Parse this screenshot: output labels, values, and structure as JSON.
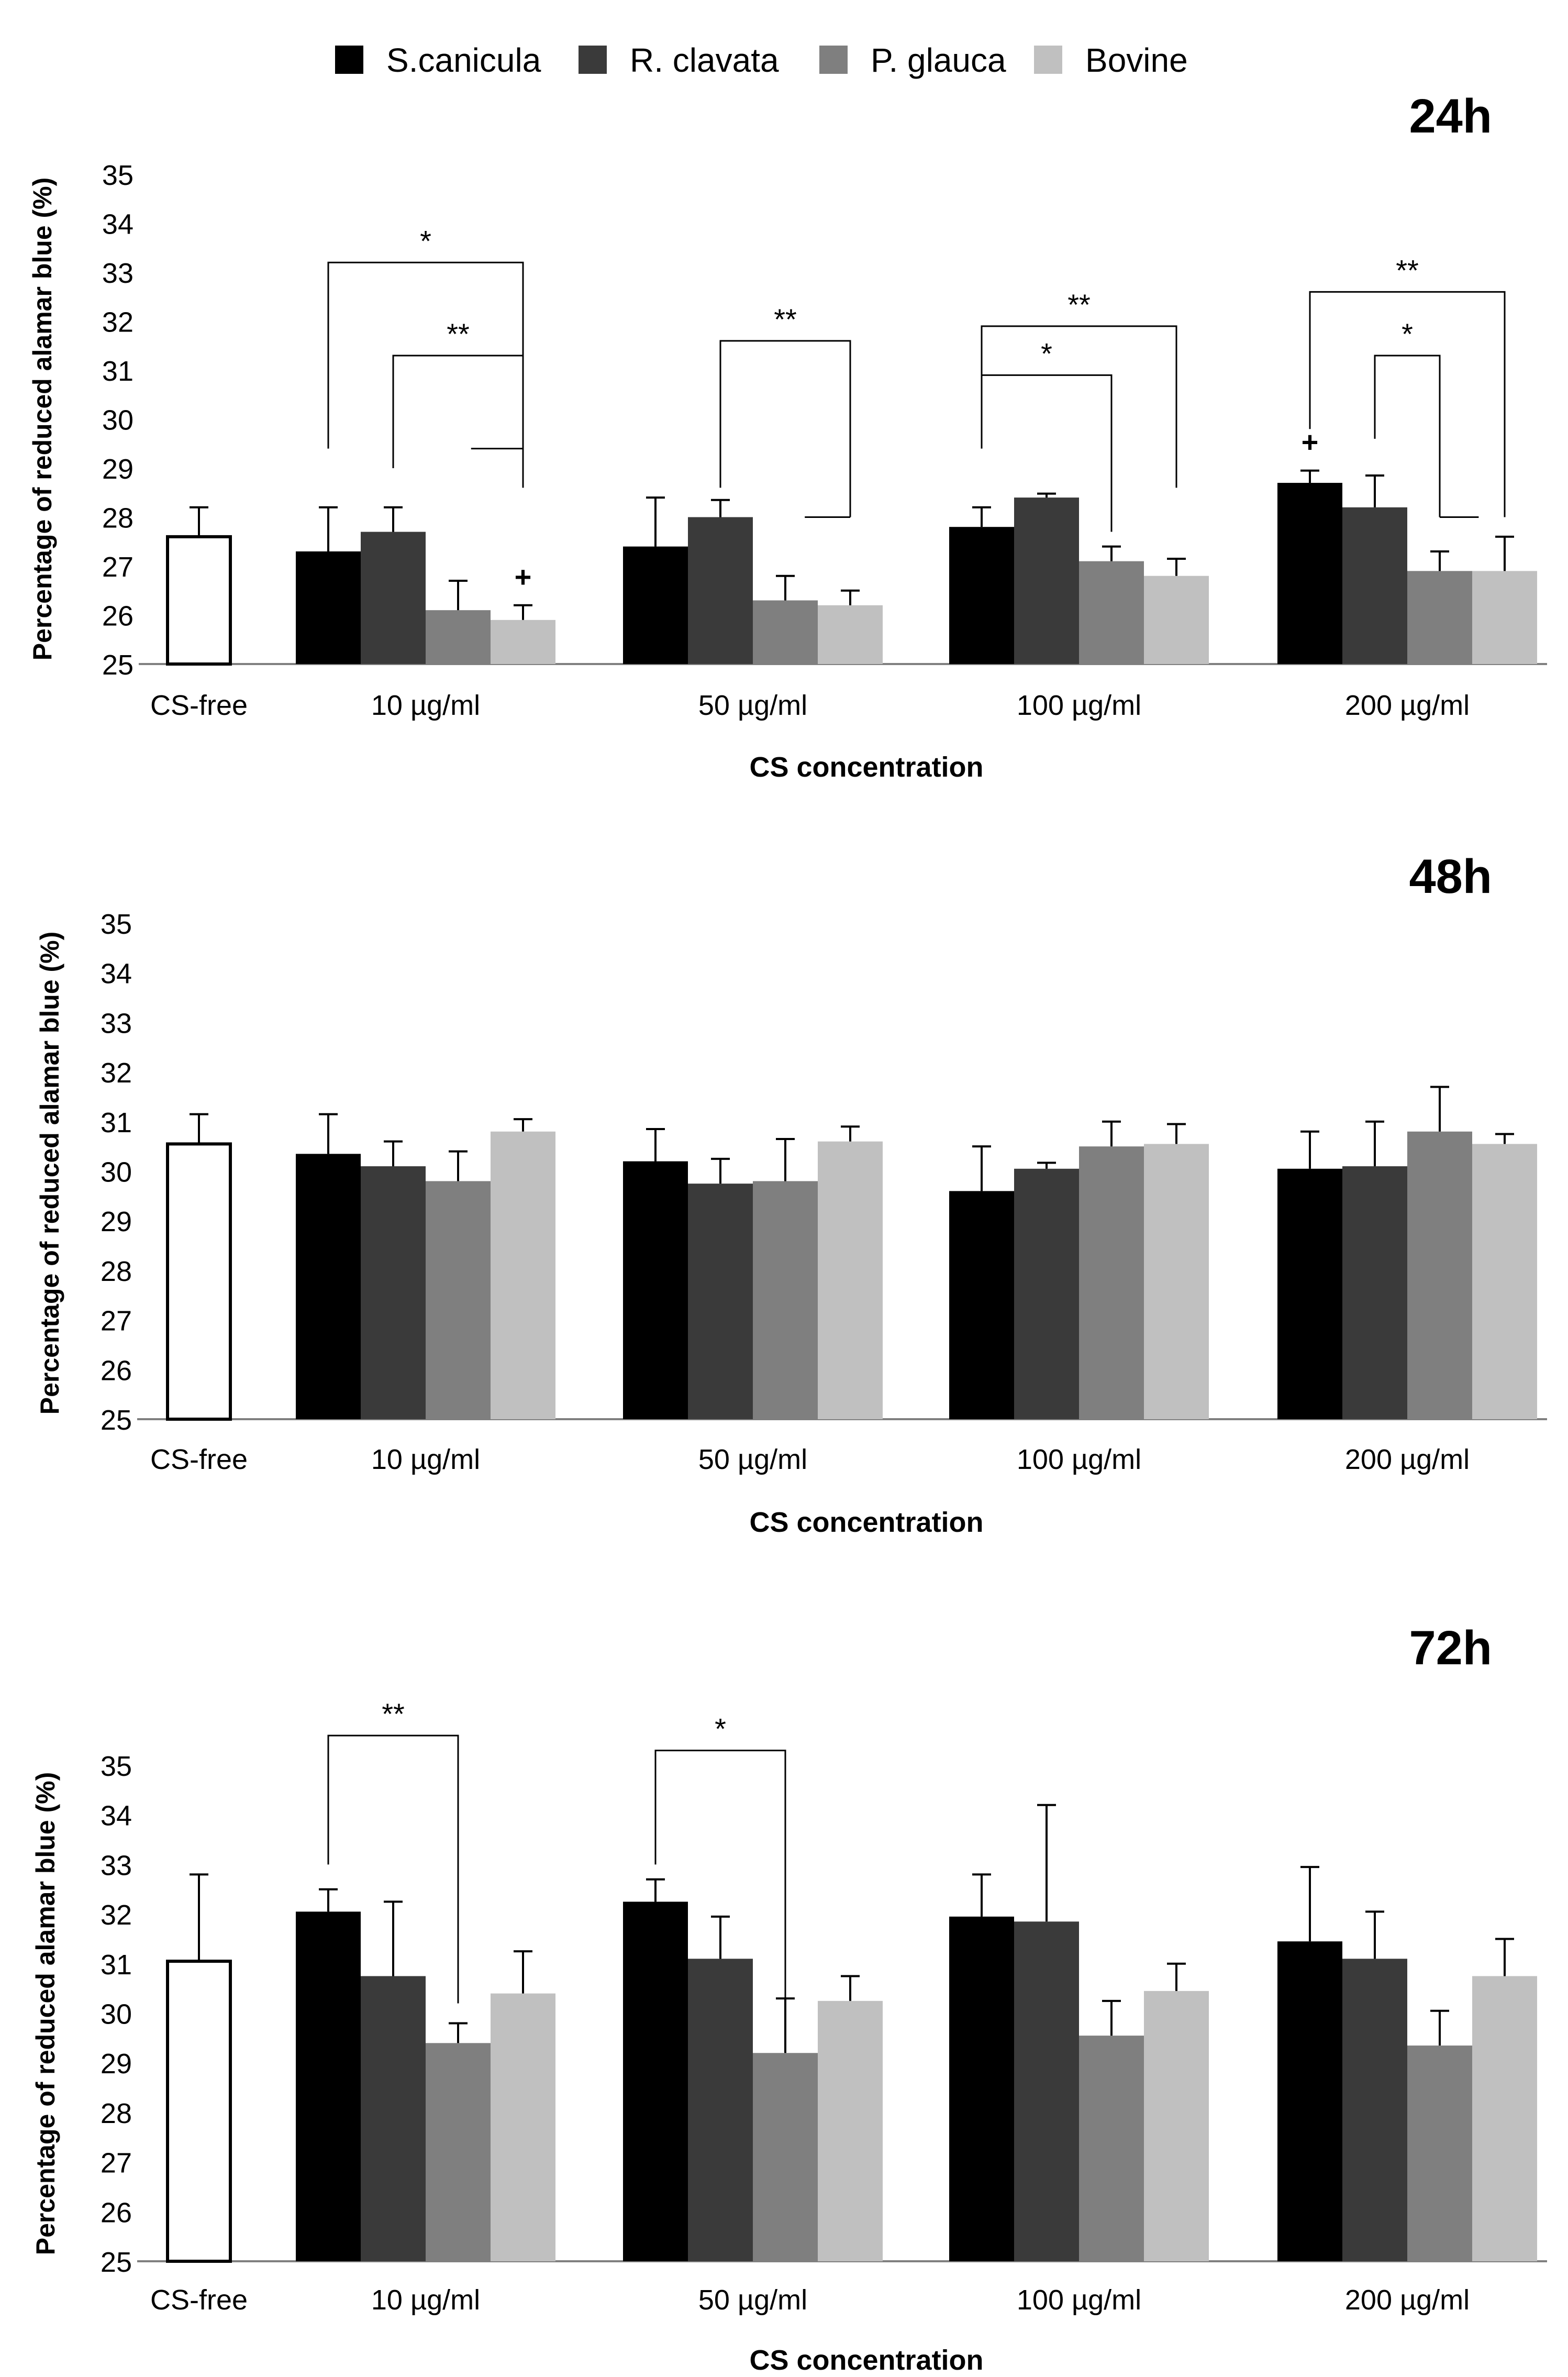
{
  "legend": {
    "entries": [
      {
        "name": "S.canicula",
        "color": "#000000"
      },
      {
        "name": "R. clavata",
        "color": "#3a3a3a"
      },
      {
        "name": "P. glauca",
        "color": "#7f7f7f"
      },
      {
        "name": "Bovine",
        "color": "#c0c0c0"
      }
    ]
  },
  "colors": {
    "control_fill": "#ffffff",
    "axis": "#808080",
    "text": "#000000"
  },
  "chart_data": [
    {
      "type": "bar",
      "title": "24h",
      "xlabel": "CS concentration",
      "ylabel": "Percentage of reduced alamar blue (%)",
      "ylim": [
        25,
        35
      ],
      "yticks": [
        "25",
        "26",
        "27",
        "28",
        "29",
        "30",
        "31",
        "32",
        "33",
        "34",
        "35"
      ],
      "control": {
        "label": "CS-free",
        "value": 27.6,
        "error": 0.6
      },
      "categories": [
        "10 µg/ml",
        "50 µg/ml",
        "100 µg/ml",
        "200 µg/ml"
      ],
      "series": [
        {
          "name": "S.canicula",
          "values": [
            27.3,
            27.4,
            27.8,
            28.7
          ],
          "errors": [
            0.9,
            1.0,
            0.4,
            0.25
          ]
        },
        {
          "name": "R. clavata",
          "values": [
            27.7,
            28.0,
            28.4,
            28.2
          ],
          "errors": [
            0.5,
            0.35,
            0.08,
            0.65
          ]
        },
        {
          "name": "P. glauca",
          "values": [
            26.1,
            26.3,
            27.1,
            26.9
          ],
          "errors": [
            0.6,
            0.5,
            0.3,
            0.4
          ]
        },
        {
          "name": "Bovine",
          "values": [
            25.9,
            26.2,
            26.8,
            26.9
          ],
          "errors": [
            0.3,
            0.3,
            0.35,
            0.7
          ]
        }
      ],
      "brackets": [
        {
          "cat": 0,
          "from": 0,
          "to": 3,
          "label": "*",
          "legs": [
            29.4,
            29.4
          ],
          "level": 33.2,
          "tail_to": 2.2
        },
        {
          "cat": 0,
          "from": 1,
          "to": 3,
          "label": "**",
          "legs": [
            29.0,
            28.6
          ],
          "level": 31.3
        },
        {
          "cat": 1,
          "from": 1,
          "to": 3,
          "label": "**",
          "legs": [
            28.6,
            28.0
          ],
          "level": 31.6,
          "tail_to": 2.3
        },
        {
          "cat": 2,
          "from": 0,
          "to": 3,
          "label": "**",
          "legs": [
            29.5,
            28.6
          ],
          "level": 31.9
        },
        {
          "cat": 2,
          "from": 0,
          "to": 2,
          "label": "*",
          "legs": [
            29.4,
            27.7
          ],
          "level": 30.9
        },
        {
          "cat": 3,
          "from": 0,
          "to": 3,
          "label": "**",
          "legs": [
            29.8,
            28.0
          ],
          "level": 32.6
        },
        {
          "cat": 3,
          "from": 1,
          "to": 2,
          "label": "*",
          "legs": [
            29.6,
            28.0
          ],
          "level": 31.3,
          "tail_to": 2.6
        }
      ],
      "markers": [
        {
          "cat": 0,
          "series": 3,
          "label": "+"
        },
        {
          "cat": 3,
          "series": 0,
          "label": "+"
        }
      ]
    },
    {
      "type": "bar",
      "title": "48h",
      "xlabel": "CS concentration",
      "ylabel": "Percentage of reduced alamar blue (%)",
      "ylim": [
        25,
        35
      ],
      "yticks": [
        "25",
        "26",
        "27",
        "28",
        "29",
        "30",
        "31",
        "32",
        "33",
        "34",
        "35"
      ],
      "control": {
        "label": "CS-free",
        "value": 30.55,
        "error": 0.6
      },
      "categories": [
        "10 µg/ml",
        "50 µg/ml",
        "100 µg/ml",
        "200 µg/ml"
      ],
      "series": [
        {
          "name": "S.canicula",
          "values": [
            30.35,
            30.2,
            29.6,
            30.05
          ],
          "errors": [
            0.8,
            0.65,
            0.9,
            0.75
          ]
        },
        {
          "name": "R. clavata",
          "values": [
            30.1,
            29.75,
            30.05,
            30.1
          ],
          "errors": [
            0.5,
            0.5,
            0.12,
            0.9
          ]
        },
        {
          "name": "P. glauca",
          "values": [
            29.8,
            29.8,
            30.5,
            30.8
          ],
          "errors": [
            0.6,
            0.85,
            0.5,
            0.9
          ]
        },
        {
          "name": "Bovine",
          "values": [
            30.8,
            30.6,
            30.55,
            30.55
          ],
          "errors": [
            0.25,
            0.3,
            0.4,
            0.2
          ]
        }
      ],
      "brackets": [],
      "markers": []
    },
    {
      "type": "bar",
      "title": "72h",
      "xlabel": "CS concentration",
      "ylabel": "Percentage of reduced alamar blue (%)",
      "ylim": [
        25,
        35
      ],
      "yticks": [
        "25",
        "26",
        "27",
        "28",
        "29",
        "30",
        "31",
        "32",
        "33",
        "34",
        "35"
      ],
      "control": {
        "label": "CS-free",
        "value": 31.05,
        "error": 1.75
      },
      "categories": [
        "10 µg/ml",
        "50 µg/ml",
        "100 µg/ml",
        "200 µg/ml"
      ],
      "series": [
        {
          "name": "S.canicula",
          "values": [
            32.05,
            32.25,
            31.95,
            31.45
          ],
          "errors": [
            0.45,
            0.45,
            0.85,
            1.5
          ]
        },
        {
          "name": "R. clavata",
          "values": [
            30.75,
            31.1,
            31.85,
            31.1
          ],
          "errors": [
            1.5,
            0.85,
            2.35,
            0.95
          ]
        },
        {
          "name": "P. glauca",
          "values": [
            29.4,
            29.2,
            29.55,
            29.35
          ],
          "errors": [
            0.4,
            1.1,
            0.7,
            0.7
          ]
        },
        {
          "name": "Bovine",
          "values": [
            30.4,
            30.25,
            30.45,
            30.75
          ],
          "errors": [
            0.85,
            0.5,
            0.55,
            0.75
          ]
        }
      ],
      "brackets": [
        {
          "cat": 0,
          "from": 0,
          "to": 2,
          "label": "**",
          "legs": [
            33.0,
            30.2
          ],
          "level": 35.6
        },
        {
          "cat": 1,
          "from": 0,
          "to": 2,
          "label": "*",
          "legs": [
            33.0,
            30.0
          ],
          "level": 35.3
        }
      ],
      "markers": []
    }
  ]
}
